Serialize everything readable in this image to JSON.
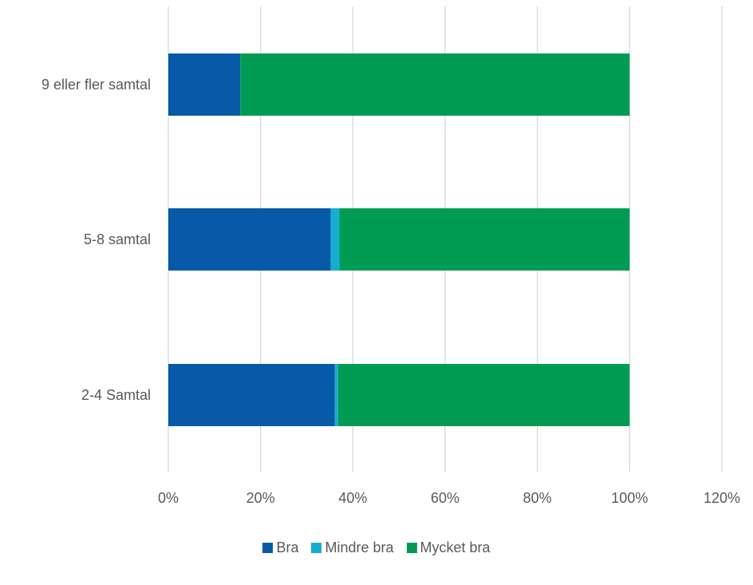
{
  "chart_data": {
    "type": "bar",
    "orientation": "horizontal",
    "stacked": true,
    "categories": [
      "9 eller fler samtal",
      "5-8 samtal",
      "2-4 Samtal"
    ],
    "series": [
      {
        "name": "Bra",
        "color": "#065AA8",
        "values": [
          15.6,
          35.2,
          36.1
        ]
      },
      {
        "name": "Mindre bra",
        "color": "#16AECF",
        "values": [
          0.0,
          1.9,
          0.7
        ]
      },
      {
        "name": "Mycket bra",
        "color": "#009C54",
        "values": [
          84.4,
          62.9,
          63.2
        ]
      }
    ],
    "xlim": [
      0,
      120
    ],
    "xticks": [
      "0%",
      "20%",
      "40%",
      "60%",
      "80%",
      "100%",
      "120%"
    ],
    "grid": true,
    "gridline_color": "#d9d9d9",
    "legend_position": "bottom"
  }
}
